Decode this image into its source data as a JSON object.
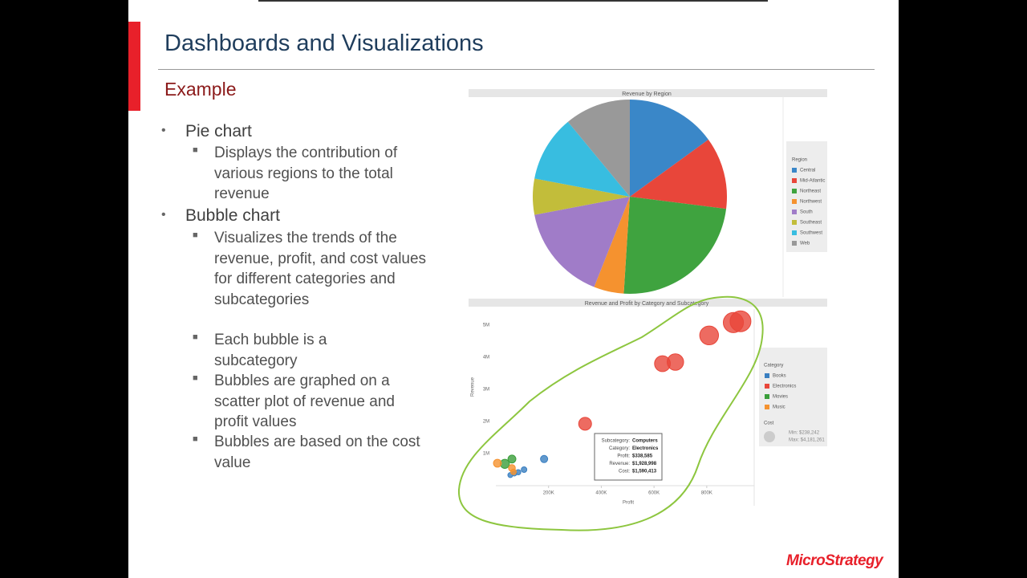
{
  "slide": {
    "title": "Dashboards and Visualizations",
    "subtitle": "Example",
    "bullets": [
      {
        "text": "Pie chart",
        "sub": [
          "Displays the contribution of various regions to the total revenue"
        ]
      },
      {
        "text": "Bubble chart",
        "sub": [
          "Visualizes the trends of the revenue, profit, and cost values for different categories and subcategories",
          "Each bubble is a subcategory",
          "Bubbles are graphed on a scatter plot of revenue and profit values",
          "Bubbles are based on the cost value"
        ]
      }
    ],
    "logo": "MicroStrategy"
  },
  "chart_data": [
    {
      "type": "pie",
      "title": "Revenue by Region",
      "legend_title": "Region",
      "categories": [
        "Central",
        "Mid-Atlantic",
        "Northeast",
        "Northwest",
        "South",
        "Southeast",
        "Southwest",
        "Web"
      ],
      "values": [
        15,
        12,
        24,
        5,
        16,
        6,
        11,
        11
      ],
      "colors": [
        "#3a87c8",
        "#e8463a",
        "#3fa33f",
        "#f5922f",
        "#a07cc8",
        "#c2bd3a",
        "#38bde0",
        "#999999"
      ]
    },
    {
      "type": "bubble",
      "title": "Revenue and Profit by Category and Subcategory",
      "x_label": "Profit",
      "y_label": "Revenue",
      "legend_title": "Category",
      "size_legend_title": "Cost",
      "size_legend_labels": [
        "Min: $238,242",
        "Max: $4,181,261"
      ],
      "xlim": [
        0,
        980000
      ],
      "ylim": [
        0,
        5500000
      ],
      "xticks": [
        {
          "value": 200000,
          "label": "200K"
        },
        {
          "value": 400000,
          "label": "400K"
        },
        {
          "value": 600000,
          "label": "600K"
        },
        {
          "value": 800000,
          "label": "800K"
        }
      ],
      "yticks": [
        {
          "value": 1000000,
          "label": "1M"
        },
        {
          "value": 2000000,
          "label": "2M"
        },
        {
          "value": 3000000,
          "label": "3M"
        },
        {
          "value": 4000000,
          "label": "4M"
        },
        {
          "value": 5000000,
          "label": "5M"
        }
      ],
      "grid": false,
      "series": [
        {
          "name": "Books",
          "color": "#3a7fc1",
          "x": [
            183000,
            107000,
            85000,
            70000,
            55000
          ],
          "values": [
            830000,
            500000,
            420000,
            380000,
            330000
          ],
          "sizes": [
            500000,
            300000,
            260000,
            250000,
            240000
          ]
        },
        {
          "name": "Electronics",
          "color": "#e8463a",
          "x": [
            338585,
            632000,
            681000,
            809000,
            901000,
            928000
          ],
          "values": [
            1928998,
            3800000,
            3850000,
            4680000,
            5080000,
            5120000
          ],
          "sizes": [
            1590413,
            2400000,
            2600000,
            3400000,
            3900000,
            4181261
          ]
        },
        {
          "name": "Movies",
          "color": "#3a9e3a",
          "x": [
            61000,
            34000
          ],
          "values": [
            830000,
            680000
          ],
          "sizes": [
            600000,
            800000
          ]
        },
        {
          "name": "Music",
          "color": "#f5922f",
          "x": [
            6000,
            61000,
            67000
          ],
          "values": [
            700000,
            550000,
            430000
          ],
          "sizes": [
            600000,
            450000,
            300000
          ]
        }
      ],
      "tooltip": {
        "labels": [
          "Subcategory:",
          "Category:",
          "Profit:",
          "Revenue:",
          "Cost:"
        ],
        "values": [
          "Computers",
          "Electronics",
          "$338,585",
          "$1,928,998",
          "$1,590,413"
        ]
      }
    }
  ]
}
